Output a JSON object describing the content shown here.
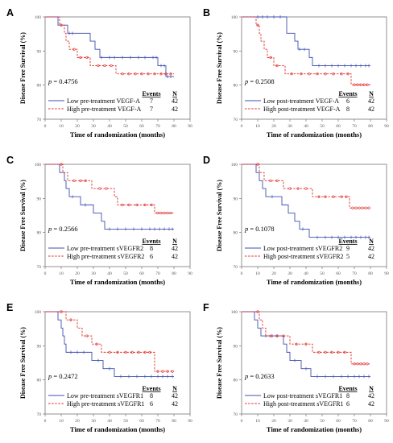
{
  "colors": {
    "low": "#3f4fb0",
    "high": "#e0302c",
    "axis": "#777777",
    "text": "#000000"
  },
  "legend_headers": {
    "events": "Events",
    "n": "N"
  },
  "chart_data": [
    {
      "type": "line",
      "panel": "A",
      "xlabel": "Time of randomization (months)",
      "ylabel": "Disease Free Survival (%)",
      "xlim": [
        0,
        90
      ],
      "ylim": [
        70,
        100
      ],
      "xticks": [
        0,
        10,
        20,
        30,
        40,
        50,
        60,
        70,
        80,
        90
      ],
      "yticks": [
        70,
        80,
        90,
        100
      ],
      "p_value": "0.4756",
      "series": [
        {
          "name": "Low pre-treatment VEGF-A",
          "events": "7",
          "n": "42",
          "style": "solid",
          "steps": [
            [
              0,
              100
            ],
            [
              8,
              97.6
            ],
            [
              14,
              95.2
            ],
            [
              28,
              92.9
            ],
            [
              31,
              90.5
            ],
            [
              34,
              88.1
            ],
            [
              70,
              85.7
            ],
            [
              75,
              82.5
            ]
          ],
          "censors": [
            15,
            17,
            35,
            40,
            43,
            48,
            53,
            58,
            62,
            67,
            69,
            72,
            74,
            76,
            78
          ]
        },
        {
          "name": "High pre-treatment VEGF-A",
          "events": "7",
          "n": "42",
          "style": "dashed",
          "steps": [
            [
              0,
              100
            ],
            [
              9,
              97.6
            ],
            [
              12,
              95.2
            ],
            [
              13,
              92.9
            ],
            [
              15,
              90.5
            ],
            [
              20,
              88.1
            ],
            [
              28,
              85.7
            ],
            [
              44,
              83.3
            ]
          ],
          "censors": [
            10,
            18,
            22,
            26,
            33,
            37,
            41,
            48,
            52,
            56,
            60,
            64,
            68,
            72,
            75,
            78
          ]
        }
      ]
    },
    {
      "type": "line",
      "panel": "B",
      "xlabel": "Time of randomization (months)",
      "ylabel": "Disease Free Survival (%)",
      "xlim": [
        0,
        90
      ],
      "ylim": [
        70,
        100
      ],
      "xticks": [
        0,
        10,
        20,
        30,
        40,
        50,
        60,
        70,
        80,
        90
      ],
      "yticks": [
        70,
        80,
        90,
        100
      ],
      "p_value": "0.2508",
      "series": [
        {
          "name": "Low post-treatment VEGF-A",
          "events": "6",
          "n": "42",
          "style": "solid",
          "steps": [
            [
              0,
              100
            ],
            [
              28,
              95.2
            ],
            [
              33,
              92.9
            ],
            [
              35,
              90.5
            ],
            [
              42,
              88.1
            ],
            [
              44,
              85.7
            ]
          ],
          "censors": [
            10,
            13,
            16,
            20,
            24,
            36,
            39,
            48,
            52,
            56,
            60,
            64,
            68,
            71,
            74,
            77,
            79
          ]
        },
        {
          "name": "High post-treatment VEGF-A",
          "events": "8",
          "n": "42",
          "style": "dashed",
          "steps": [
            [
              0,
              100
            ],
            [
              9,
              97.6
            ],
            [
              11,
              95.2
            ],
            [
              12,
              92.9
            ],
            [
              14,
              90.5
            ],
            [
              16,
              88.1
            ],
            [
              20,
              85.7
            ],
            [
              27,
              83.3
            ],
            [
              68,
              80.1
            ]
          ],
          "censors": [
            10,
            18,
            22,
            31,
            37,
            42,
            47,
            52,
            57,
            62,
            66,
            70,
            72,
            74,
            76,
            78
          ]
        }
      ]
    },
    {
      "type": "line",
      "panel": "C",
      "xlabel": "Time of randomization (months)",
      "ylabel": "Disease Free Survival (%)",
      "xlim": [
        0,
        90
      ],
      "ylim": [
        70,
        100
      ],
      "xticks": [
        0,
        10,
        20,
        30,
        40,
        50,
        60,
        70,
        80,
        90
      ],
      "yticks": [
        70,
        80,
        90,
        100
      ],
      "p_value": "0.2566",
      "series": [
        {
          "name": "Low pre-treatment sVEGFR2",
          "events": "8",
          "n": "42",
          "style": "solid",
          "steps": [
            [
              0,
              100
            ],
            [
              9,
              97.6
            ],
            [
              12,
              95.2
            ],
            [
              13,
              92.9
            ],
            [
              15,
              90.5
            ],
            [
              22,
              88.1
            ],
            [
              30,
              85.7
            ],
            [
              35,
              83.3
            ],
            [
              37,
              81.0
            ]
          ],
          "censors": [
            17,
            25,
            40,
            45,
            50,
            55,
            60,
            65,
            68,
            71,
            74,
            77,
            79
          ]
        },
        {
          "name": "High pre-treatment sVEGFR2",
          "events": "6",
          "n": "42",
          "style": "dashed",
          "steps": [
            [
              0,
              100
            ],
            [
              11,
              97.6
            ],
            [
              14,
              95.2
            ],
            [
              29,
              92.9
            ],
            [
              43,
              90.5
            ],
            [
              45,
              88.1
            ],
            [
              68,
              85.7
            ]
          ],
          "censors": [
            10,
            18,
            22,
            25,
            34,
            38,
            48,
            52,
            57,
            62,
            66,
            70,
            72,
            74,
            76,
            78
          ]
        }
      ]
    },
    {
      "type": "line",
      "panel": "D",
      "xlabel": "Time of randomization (months)",
      "ylabel": "Disease Free Survival (%)",
      "xlim": [
        0,
        90
      ],
      "ylim": [
        70,
        100
      ],
      "xticks": [
        0,
        10,
        20,
        30,
        40,
        50,
        60,
        70,
        80,
        90
      ],
      "yticks": [
        70,
        80,
        90,
        100
      ],
      "p_value": "0.1078",
      "series": [
        {
          "name": "Low post-treatment sVEGFR2",
          "events": "9",
          "n": "42",
          "style": "solid",
          "steps": [
            [
              0,
              100
            ],
            [
              9,
              97.6
            ],
            [
              11,
              95.2
            ],
            [
              13,
              92.9
            ],
            [
              15,
              90.5
            ],
            [
              25,
              88.1
            ],
            [
              29,
              85.7
            ],
            [
              33,
              83.3
            ],
            [
              36,
              81.0
            ],
            [
              42,
              78.6
            ]
          ],
          "censors": [
            19,
            38,
            47,
            52,
            56,
            60,
            64,
            68,
            71,
            74,
            77,
            79
          ]
        },
        {
          "name": "High post-treatment sVEGFR2",
          "events": "5",
          "n": "42",
          "style": "dashed",
          "steps": [
            [
              0,
              100
            ],
            [
              11,
              97.6
            ],
            [
              14,
              95.2
            ],
            [
              26,
              92.9
            ],
            [
              44,
              90.5
            ],
            [
              67,
              87.2
            ]
          ],
          "censors": [
            10,
            18,
            22,
            30,
            35,
            40,
            48,
            52,
            57,
            62,
            65,
            69,
            71,
            73,
            75,
            77,
            79
          ]
        }
      ]
    },
    {
      "type": "line",
      "panel": "E",
      "xlabel": "Time of randomization (months)",
      "ylabel": "Disease Free Survival (%)",
      "xlim": [
        0,
        90
      ],
      "ylim": [
        70,
        100
      ],
      "xticks": [
        0,
        10,
        20,
        30,
        40,
        50,
        60,
        70,
        80,
        90
      ],
      "yticks": [
        70,
        80,
        90,
        100
      ],
      "p_value": "0.2472",
      "series": [
        {
          "name": "Low pre-treatment sVEGFR1",
          "events": "8",
          "n": "42",
          "style": "solid",
          "steps": [
            [
              0,
              100
            ],
            [
              8,
              97.6
            ],
            [
              10,
              95.2
            ],
            [
              11,
              92.9
            ],
            [
              12,
              90.5
            ],
            [
              13,
              88.1
            ],
            [
              29,
              85.7
            ],
            [
              36,
              83.3
            ],
            [
              43,
              81.0
            ]
          ],
          "censors": [
            16,
            20,
            24,
            33,
            40,
            47,
            52,
            57,
            62,
            66,
            70,
            73,
            76,
            79
          ]
        },
        {
          "name": "High pre-treatment sVEGFR1",
          "events": "6",
          "n": "42",
          "style": "dashed",
          "steps": [
            [
              0,
              100
            ],
            [
              13,
              97.6
            ],
            [
              20,
              95.2
            ],
            [
              23,
              92.9
            ],
            [
              29,
              90.5
            ],
            [
              35,
              88.1
            ],
            [
              68,
              82.5
            ]
          ],
          "censors": [
            10,
            16,
            26,
            32,
            40,
            45,
            50,
            54,
            58,
            62,
            65,
            70,
            73,
            76,
            79
          ]
        }
      ]
    },
    {
      "type": "line",
      "panel": "F",
      "xlabel": "Time of randomization (months)",
      "ylabel": "Disease Free Survival (%)",
      "xlim": [
        0,
        90
      ],
      "ylim": [
        70,
        100
      ],
      "xticks": [
        0,
        10,
        20,
        30,
        40,
        50,
        60,
        70,
        80,
        90
      ],
      "yticks": [
        70,
        80,
        90,
        100
      ],
      "p_value": "0.2633",
      "series": [
        {
          "name": "Low post-treatment sVEGFR1",
          "events": "8",
          "n": "42",
          "style": "solid",
          "steps": [
            [
              0,
              100
            ],
            [
              8,
              97.6
            ],
            [
              10,
              95.2
            ],
            [
              12,
              92.9
            ],
            [
              26,
              90.5
            ],
            [
              28,
              88.1
            ],
            [
              30,
              85.7
            ],
            [
              37,
              83.3
            ],
            [
              43,
              81.0
            ]
          ],
          "censors": [
            15,
            19,
            22,
            33,
            40,
            47,
            52,
            57,
            62,
            66,
            70,
            73,
            76,
            79
          ]
        },
        {
          "name": "High post-treatment sVEGFR1",
          "events": "6",
          "n": "42",
          "style": "dashed",
          "steps": [
            [
              0,
              100
            ],
            [
              11,
              97.6
            ],
            [
              13,
              95.2
            ],
            [
              15,
              92.9
            ],
            [
              30,
              90.5
            ],
            [
              44,
              88.1
            ],
            [
              68,
              84.7
            ]
          ],
          "censors": [
            10,
            18,
            22,
            26,
            34,
            40,
            48,
            52,
            56,
            60,
            64,
            70,
            72,
            74,
            76,
            78
          ]
        }
      ]
    }
  ]
}
